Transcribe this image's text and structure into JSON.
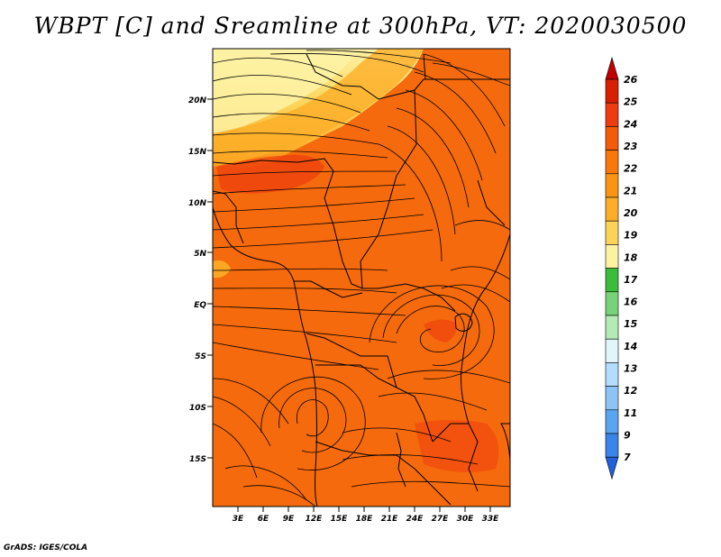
{
  "title": "WBPT [C] and Sreamline at 300hPa, VT: 2020030500",
  "footer": "GrADS: IGES/COLA",
  "map": {
    "variable": "Wet-bulb potential temperature",
    "units": "C",
    "level": "300hPa",
    "valid_time": "2020030500",
    "lat_labels": [
      "20N",
      "15N",
      "10N",
      "5N",
      "EQ",
      "5S",
      "10S",
      "15S"
    ],
    "lon_labels": [
      "3E",
      "6E",
      "9E",
      "12E",
      "15E",
      "18E",
      "21E",
      "24E",
      "27E",
      "30E",
      "33E"
    ]
  },
  "colorbar": {
    "labels": [
      "26",
      "25",
      "24",
      "23",
      "22",
      "21",
      "20",
      "19",
      "18",
      "17",
      "16",
      "15",
      "14",
      "13",
      "12",
      "11",
      "9",
      "7"
    ],
    "colors": [
      "#c00000",
      "#d82000",
      "#ee3c10",
      "#f55a0c",
      "#f8780c",
      "#fa9514",
      "#fcae28",
      "#fcd45a",
      "#fdf2a4",
      "#3cbc3c",
      "#78d278",
      "#b4eab4",
      "#e0f6fa",
      "#b4dcfc",
      "#8cc4f8",
      "#5ca4f2",
      "#3c84ea",
      "#2060d8"
    ]
  },
  "colors": {
    "background": "#ffffff",
    "field_base": "#f56a0c",
    "border": "#000000"
  }
}
